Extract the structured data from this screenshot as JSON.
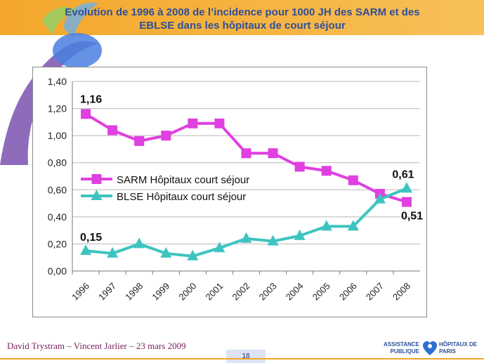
{
  "slide": {
    "title": "Evolution de 1996 à 2008 de l’incidence pour 1000 JH des SARM et des EBLSE dans les hôpitaux de court séjour",
    "footer_author": "David Trystram – Vincent Jarlier – 23 mars 2009",
    "page_number": "18",
    "logo_left": "ASSISTANCE PUBLIQUE",
    "logo_right": "HÔPITAUX DE PARIS"
  },
  "colors": {
    "sarm": "#e040e0",
    "blse": "#3ec4c0",
    "accent": "#f3a72c",
    "title": "#2e4f9a"
  },
  "chart_data": {
    "type": "line",
    "title": "",
    "xlabel": "",
    "ylabel": "",
    "categories": [
      "1996",
      "1997",
      "1998",
      "1999",
      "2000",
      "2001",
      "2002",
      "2003",
      "2004",
      "2005",
      "2006",
      "2007",
      "2008"
    ],
    "ylim": [
      0,
      1.4
    ],
    "yticks": [
      "0,00",
      "0,20",
      "0,40",
      "0,60",
      "0,80",
      "1,00",
      "1,20",
      "1,40"
    ],
    "grid": true,
    "legend_position": "center-left",
    "series": [
      {
        "name": "SARM Hôpitaux court  séjour",
        "marker": "square",
        "values": [
          1.16,
          1.04,
          0.96,
          1.0,
          1.09,
          1.09,
          0.87,
          0.87,
          0.77,
          0.74,
          0.67,
          0.57,
          0.51
        ]
      },
      {
        "name": "BLSE Hôpitaux court  séjour",
        "marker": "triangle",
        "values": [
          0.15,
          0.13,
          0.2,
          0.13,
          0.11,
          0.17,
          0.24,
          0.22,
          0.26,
          0.33,
          0.33,
          0.53,
          0.61
        ]
      }
    ],
    "annotations": [
      {
        "text": "1,16",
        "series": 0,
        "index": 0
      },
      {
        "text": "0,51",
        "series": 0,
        "index": 12
      },
      {
        "text": "0,15",
        "series": 1,
        "index": 0
      },
      {
        "text": "0,61",
        "series": 1,
        "index": 12
      }
    ]
  }
}
